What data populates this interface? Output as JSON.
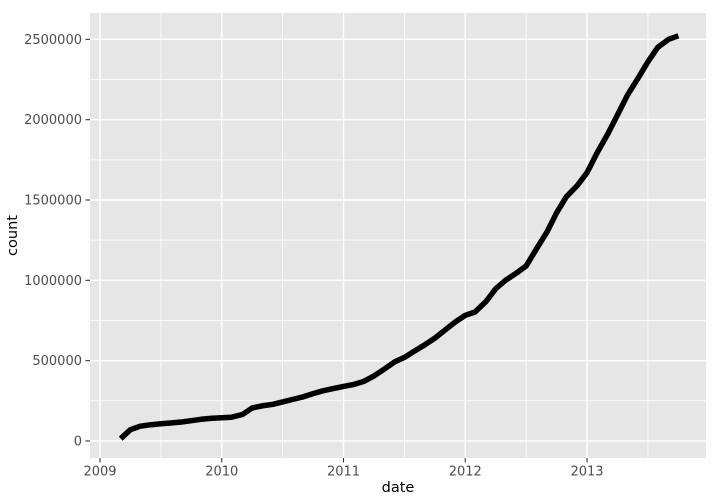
{
  "chart_data": {
    "type": "line",
    "title": "",
    "xlabel": "date",
    "ylabel": "count",
    "legend": "none",
    "grid": "major+minor",
    "xlim": [
      2008.918,
      2013.977
    ],
    "ylim": [
      -106000,
      2664000
    ],
    "x_ticks": [
      {
        "value": 2009,
        "label": "2009"
      },
      {
        "value": 2010,
        "label": "2010"
      },
      {
        "value": 2011,
        "label": "2011"
      },
      {
        "value": 2012,
        "label": "2012"
      },
      {
        "value": 2013,
        "label": "2013"
      }
    ],
    "y_ticks": [
      {
        "value": 0,
        "label": "0"
      },
      {
        "value": 500000,
        "label": "500000"
      },
      {
        "value": 1000000,
        "label": "1000000"
      },
      {
        "value": 1500000,
        "label": "1500000"
      },
      {
        "value": 2000000,
        "label": "2000000"
      },
      {
        "value": 2500000,
        "label": "2500000"
      }
    ],
    "x_minor": [
      2009.5,
      2010.5,
      2011.5,
      2012.5,
      2013.5
    ],
    "y_minor": [
      250000,
      750000,
      1250000,
      1750000,
      2250000
    ],
    "style": {
      "panel_bg": "#e6e6e6",
      "grid_color": "#ffffff",
      "line_color": "#000000",
      "axis_text_color": "#4d4d4d",
      "axis_title_color": "#000000",
      "tick_color": "#333333"
    },
    "series": [
      {
        "name": "count",
        "points": [
          [
            2009.17,
            14000
          ],
          [
            2009.25,
            70000
          ],
          [
            2009.33,
            92000
          ],
          [
            2009.42,
            101000
          ],
          [
            2009.5,
            107000
          ],
          [
            2009.58,
            112000
          ],
          [
            2009.67,
            118000
          ],
          [
            2009.75,
            126000
          ],
          [
            2009.83,
            135000
          ],
          [
            2009.92,
            141000
          ],
          [
            2010.0,
            145000
          ],
          [
            2010.08,
            148000
          ],
          [
            2010.17,
            165000
          ],
          [
            2010.25,
            205000
          ],
          [
            2010.33,
            218000
          ],
          [
            2010.42,
            228000
          ],
          [
            2010.5,
            243000
          ],
          [
            2010.58,
            258000
          ],
          [
            2010.67,
            275000
          ],
          [
            2010.75,
            295000
          ],
          [
            2010.83,
            312000
          ],
          [
            2010.92,
            327000
          ],
          [
            2011.0,
            340000
          ],
          [
            2011.08,
            351000
          ],
          [
            2011.17,
            372000
          ],
          [
            2011.25,
            405000
          ],
          [
            2011.33,
            445000
          ],
          [
            2011.42,
            492000
          ],
          [
            2011.5,
            520000
          ],
          [
            2011.58,
            558000
          ],
          [
            2011.67,
            600000
          ],
          [
            2011.75,
            640000
          ],
          [
            2011.83,
            688000
          ],
          [
            2011.92,
            742000
          ],
          [
            2012.0,
            782000
          ],
          [
            2012.08,
            803000
          ],
          [
            2012.17,
            868000
          ],
          [
            2012.25,
            948000
          ],
          [
            2012.33,
            1000000
          ],
          [
            2012.42,
            1045000
          ],
          [
            2012.5,
            1090000
          ],
          [
            2012.58,
            1190000
          ],
          [
            2012.67,
            1300000
          ],
          [
            2012.75,
            1420000
          ],
          [
            2012.83,
            1520000
          ],
          [
            2012.92,
            1590000
          ],
          [
            2013.0,
            1670000
          ],
          [
            2013.08,
            1790000
          ],
          [
            2013.17,
            1910000
          ],
          [
            2013.25,
            2030000
          ],
          [
            2013.33,
            2150000
          ],
          [
            2013.42,
            2260000
          ],
          [
            2013.5,
            2360000
          ],
          [
            2013.58,
            2450000
          ],
          [
            2013.67,
            2500000
          ],
          [
            2013.75,
            2522000
          ]
        ]
      }
    ]
  }
}
